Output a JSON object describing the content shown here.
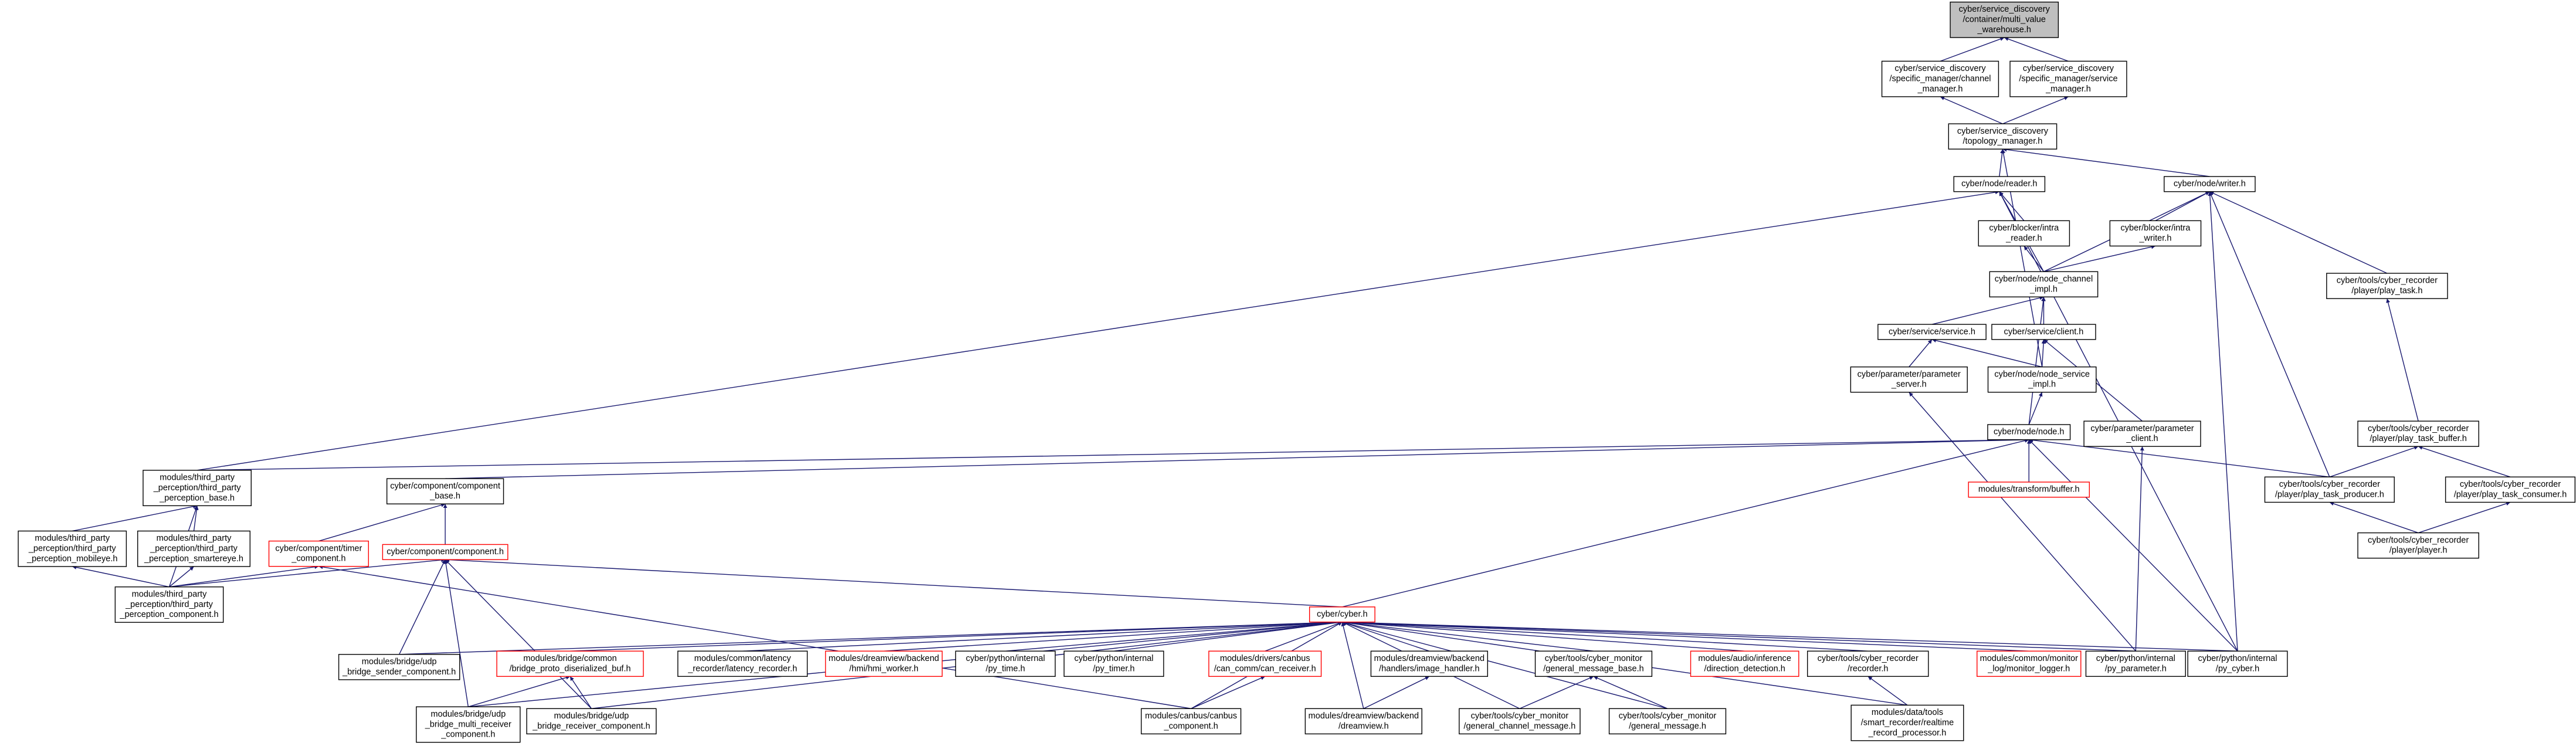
{
  "nodes": [
    {
      "label": [
        "cyber/service_discovery",
        "/container/multi_value",
        "_warehouse.h"
      ]
    },
    {
      "label": [
        "cyber/service_discovery",
        "/specific_manager/channel",
        "_manager.h"
      ]
    },
    {
      "label": [
        "cyber/service_discovery",
        "/specific_manager/service",
        "_manager.h"
      ]
    },
    {
      "label": [
        "cyber/service_discovery",
        "/topology_manager.h"
      ]
    },
    {
      "label": [
        "cyber/node/reader.h"
      ]
    },
    {
      "label": [
        "cyber/node/writer.h"
      ]
    },
    {
      "label": [
        "cyber/blocker/intra",
        "_reader.h"
      ]
    },
    {
      "label": [
        "cyber/blocker/intra",
        "_writer.h"
      ]
    },
    {
      "label": [
        "cyber/node/node_channel",
        "_impl.h"
      ]
    },
    {
      "label": [
        "cyber/tools/cyber_recorder",
        "/player/play_task.h"
      ]
    },
    {
      "label": [
        "cyber/service/service.h"
      ]
    },
    {
      "label": [
        "cyber/service/client.h"
      ]
    },
    {
      "label": [
        "cyber/parameter/parameter",
        "_server.h"
      ]
    },
    {
      "label": [
        "cyber/node/node_service",
        "_impl.h"
      ]
    },
    {
      "label": [
        "cyber/parameter/parameter",
        "_client.h"
      ]
    },
    {
      "label": [
        "cyber/node/node.h"
      ]
    },
    {
      "label": [
        "cyber/tools/cyber_recorder",
        "/player/play_task_buffer.h"
      ]
    },
    {
      "label": [
        "modules/transform/buffer.h"
      ]
    },
    {
      "label": [
        "modules/third_party",
        "_perception/third_party",
        "_perception_base.h"
      ]
    },
    {
      "label": [
        "cyber/component/component",
        "_base.h"
      ]
    },
    {
      "label": [
        "cyber/tools/cyber_recorder",
        "/player/play_task_producer.h"
      ]
    },
    {
      "label": [
        "cyber/tools/cyber_recorder",
        "/player/play_task_consumer.h"
      ]
    },
    {
      "label": [
        "modules/third_party",
        "_perception/third_party",
        "_perception_mobileye.h"
      ]
    },
    {
      "label": [
        "modules/third_party",
        "_perception/third_party",
        "_perception_smartereye.h"
      ]
    },
    {
      "label": [
        "cyber/component/timer",
        "_component.h"
      ]
    },
    {
      "label": [
        "cyber/component/component.h"
      ]
    },
    {
      "label": [
        "cyber/tools/cyber_recorder",
        "/player/player.h"
      ]
    },
    {
      "label": [
        "modules/third_party",
        "_perception/third_party",
        "_perception_component.h"
      ]
    },
    {
      "label": [
        "cyber/cyber.h"
      ]
    },
    {
      "label": [
        "modules/bridge/udp",
        "_bridge_sender_component.h"
      ]
    },
    {
      "label": [
        "modules/bridge/common",
        "/bridge_proto_diserialized_buf.h"
      ]
    },
    {
      "label": [
        "modules/common/latency",
        "_recorder/latency_recorder.h"
      ]
    },
    {
      "label": [
        "modules/dreamview/backend",
        "/hmi/hmi_worker.h"
      ]
    },
    {
      "label": [
        "cyber/python/internal",
        "/py_time.h"
      ]
    },
    {
      "label": [
        "cyber/python/internal",
        "/py_timer.h"
      ]
    },
    {
      "label": [
        "modules/drivers/canbus",
        "/can_comm/can_receiver.h"
      ]
    },
    {
      "label": [
        "modules/dreamview/backend",
        "/handlers/image_handler.h"
      ]
    },
    {
      "label": [
        "cyber/tools/cyber_monitor",
        "/general_message_base.h"
      ]
    },
    {
      "label": [
        "modules/audio/inference",
        "/direction_detection.h"
      ]
    },
    {
      "label": [
        "cyber/tools/cyber_recorder",
        "/recorder.h"
      ]
    },
    {
      "label": [
        "modules/common/monitor",
        "_log/monitor_logger.h"
      ]
    },
    {
      "label": [
        "cyber/python/internal",
        "/py_parameter.h"
      ]
    },
    {
      "label": [
        "cyber/python/internal",
        "/py_cyber.h"
      ]
    },
    {
      "label": [
        "modules/bridge/udp",
        "_bridge_multi_receiver",
        "_component.h"
      ]
    },
    {
      "label": [
        "modules/bridge/udp",
        "_bridge_receiver_component.h"
      ]
    },
    {
      "label": [
        "modules/canbus/canbus",
        "_component.h"
      ]
    },
    {
      "label": [
        "modules/dreamview/backend",
        "/dreamview.h"
      ]
    },
    {
      "label": [
        "cyber/tools/cyber_monitor",
        "/general_channel_message.h"
      ]
    },
    {
      "label": [
        "cyber/tools/cyber_monitor",
        "/general_message.h"
      ]
    },
    {
      "label": [
        "modules/data/tools",
        "/smart_recorder/realtime",
        "_record_processor.h"
      ]
    }
  ]
}
